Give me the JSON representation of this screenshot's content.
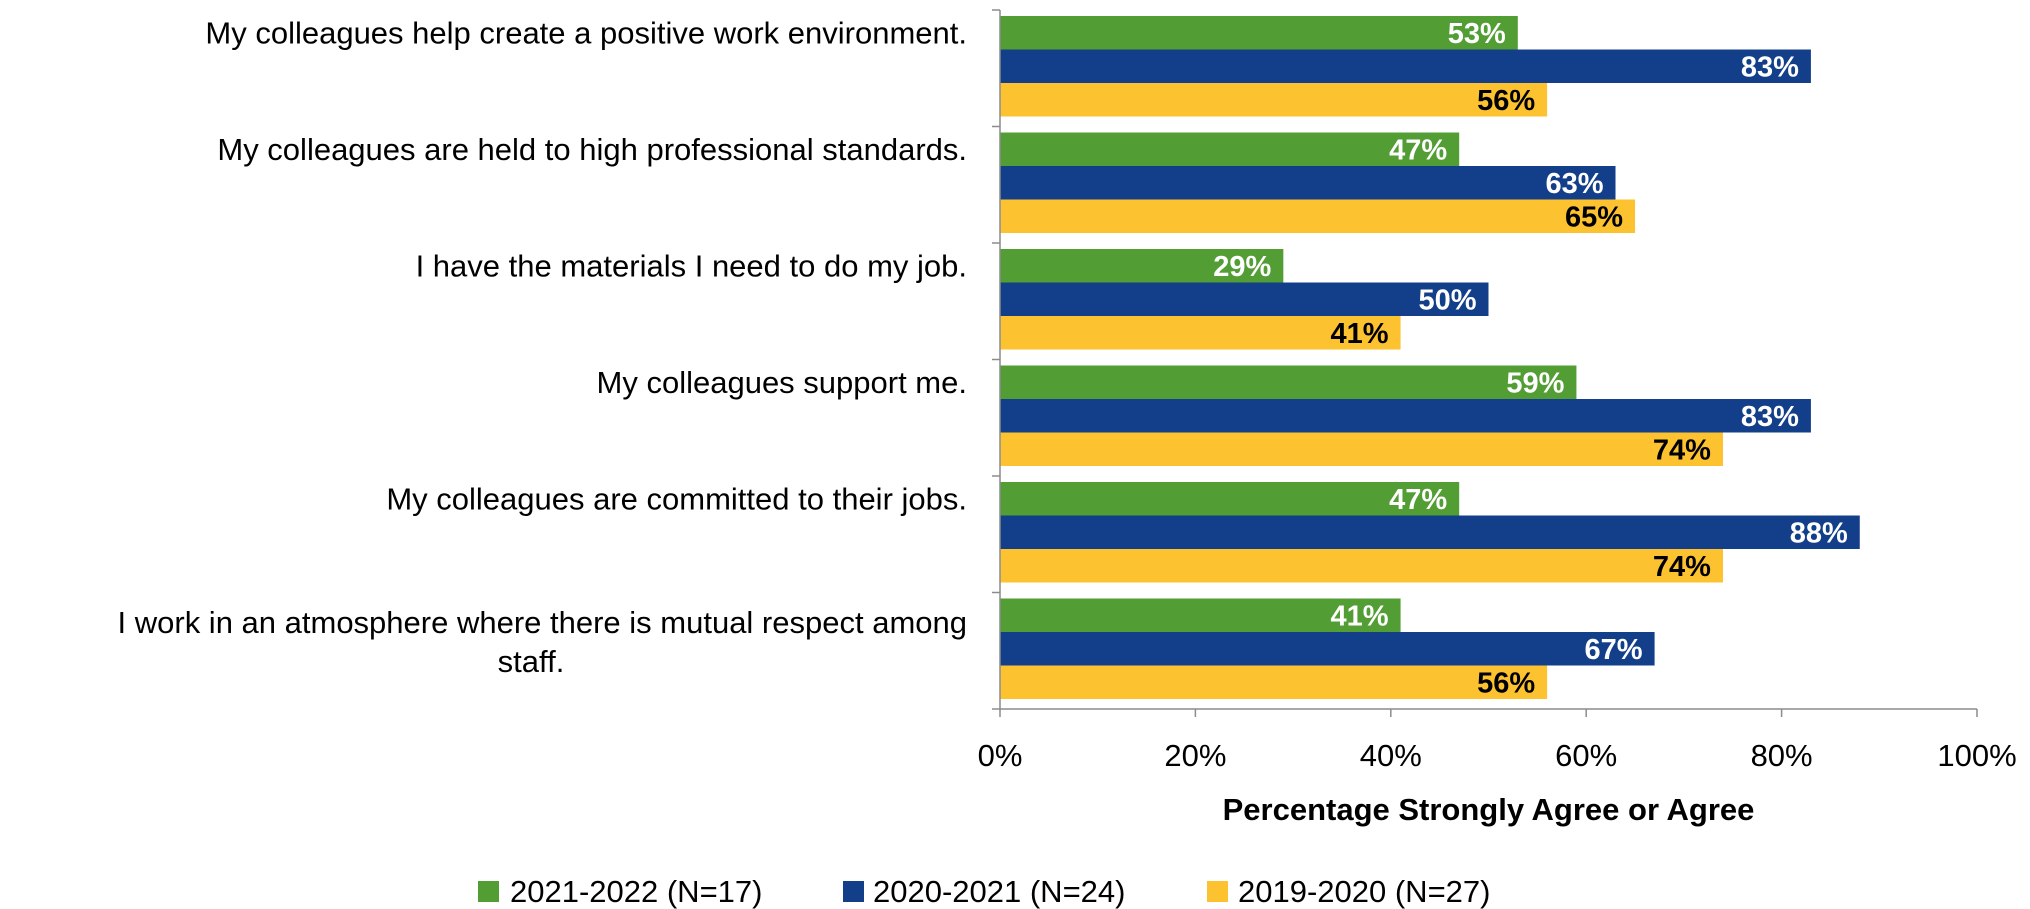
{
  "chart_data": {
    "type": "bar",
    "orientation": "horizontal",
    "categories": [
      [
        "My colleagues help create a positive work environment."
      ],
      [
        "My colleagues are held to high professional standards."
      ],
      [
        "I have the materials I need to do my job."
      ],
      [
        "My colleagues support me."
      ],
      [
        "My colleagues are committed to their jobs."
      ],
      [
        "I work in an atmosphere where there is mutual respect among",
        "staff."
      ]
    ],
    "series": [
      {
        "name": "2021-2022 (N=17)",
        "color": "#529e34",
        "label_color": "#ffffff",
        "values": [
          53,
          47,
          29,
          59,
          47,
          41
        ]
      },
      {
        "name": "2020-2021 (N=24)",
        "color": "#133f8a",
        "label_color": "#ffffff",
        "values": [
          83,
          63,
          50,
          83,
          88,
          67
        ]
      },
      {
        "name": "2019-2020 (N=27)",
        "color": "#fdc22f",
        "label_color": "#000000",
        "values": [
          56,
          65,
          41,
          74,
          74,
          56
        ]
      }
    ],
    "xlim": [
      0,
      100
    ],
    "xticks": [
      "0%",
      "20%",
      "40%",
      "60%",
      "80%",
      "100%"
    ],
    "xlabel": "Percentage Strongly Agree or Agree",
    "ylabel": "",
    "value_suffix": "%",
    "grid": false,
    "legend_position": "bottom"
  }
}
